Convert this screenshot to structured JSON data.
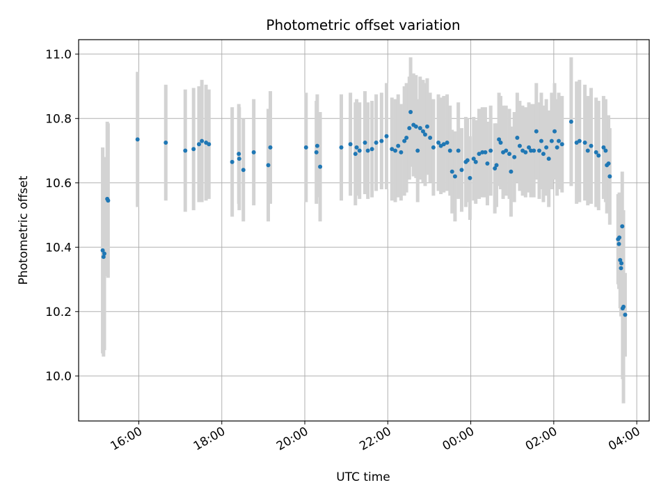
{
  "chart_data": {
    "type": "scatter",
    "title": "Photometric offset variation",
    "xlabel": "UTC time",
    "ylabel": "Photometric offset",
    "x_tick_labels": [
      "16:00",
      "18:00",
      "20:00",
      "22:00",
      "00:00",
      "02:00",
      "04:00"
    ],
    "y_tick_labels": [
      "10.0",
      "10.2",
      "10.4",
      "10.6",
      "10.8",
      "11.0"
    ],
    "x_ticks_hours": [
      16,
      18,
      20,
      22,
      24,
      26,
      28
    ],
    "y_ticks": [
      10.0,
      10.2,
      10.4,
      10.6,
      10.8,
      11.0
    ],
    "xlim_hours": [
      14.55,
      28.3
    ],
    "ylim": [
      9.86,
      11.045
    ],
    "grid": true,
    "marker_color": "#1f77b4",
    "errorbar_color": "#d3d3d3",
    "series": [
      {
        "points": [
          [
            15.13,
            10.39,
            0.32
          ],
          [
            15.15,
            10.37,
            0.31
          ],
          [
            15.17,
            10.38,
            0.3
          ],
          [
            15.24,
            10.55,
            0.24
          ],
          [
            15.26,
            10.545,
            0.24
          ],
          [
            15.97,
            10.735,
            0.21
          ],
          [
            16.65,
            10.725,
            0.18
          ],
          [
            17.12,
            10.7,
            0.19
          ],
          [
            17.32,
            10.705,
            0.19
          ],
          [
            17.45,
            10.72,
            0.18
          ],
          [
            17.52,
            10.73,
            0.19
          ],
          [
            17.62,
            10.725,
            0.18
          ],
          [
            17.69,
            10.72,
            0.17
          ],
          [
            18.25,
            10.665,
            0.17
          ],
          [
            18.41,
            10.69,
            0.155
          ],
          [
            18.42,
            10.675,
            0.16
          ],
          [
            18.52,
            10.64,
            0.16
          ],
          [
            18.77,
            10.695,
            0.165
          ],
          [
            19.12,
            10.655,
            0.175
          ],
          [
            19.17,
            10.71,
            0.175
          ],
          [
            20.03,
            10.71,
            0.17
          ],
          [
            20.28,
            10.695,
            0.16
          ],
          [
            20.3,
            10.715,
            0.16
          ],
          [
            20.37,
            10.65,
            0.17
          ],
          [
            20.88,
            10.71,
            0.165
          ],
          [
            21.1,
            10.72,
            0.16
          ],
          [
            21.22,
            10.69,
            0.16
          ],
          [
            21.25,
            10.71,
            0.15
          ],
          [
            21.32,
            10.7,
            0.15
          ],
          [
            21.45,
            10.725,
            0.16
          ],
          [
            21.52,
            10.7,
            0.15
          ],
          [
            21.62,
            10.705,
            0.15
          ],
          [
            21.72,
            10.725,
            0.15
          ],
          [
            21.85,
            10.73,
            0.15
          ],
          [
            21.97,
            10.745,
            0.165
          ],
          [
            22.1,
            10.705,
            0.16
          ],
          [
            22.18,
            10.7,
            0.16
          ],
          [
            22.25,
            10.715,
            0.16
          ],
          [
            22.32,
            10.695,
            0.15
          ],
          [
            22.4,
            10.73,
            0.17
          ],
          [
            22.45,
            10.74,
            0.17
          ],
          [
            22.52,
            10.77,
            0.16
          ],
          [
            22.55,
            10.82,
            0.17
          ],
          [
            22.62,
            10.78,
            0.16
          ],
          [
            22.68,
            10.775,
            0.16
          ],
          [
            22.72,
            10.7,
            0.16
          ],
          [
            22.78,
            10.77,
            0.16
          ],
          [
            22.85,
            10.76,
            0.16
          ],
          [
            22.9,
            10.75,
            0.16
          ],
          [
            22.95,
            10.775,
            0.15
          ],
          [
            23.02,
            10.74,
            0.14
          ],
          [
            23.1,
            10.71,
            0.15
          ],
          [
            23.22,
            10.725,
            0.15
          ],
          [
            23.28,
            10.715,
            0.15
          ],
          [
            23.35,
            10.72,
            0.15
          ],
          [
            23.43,
            10.725,
            0.15
          ],
          [
            23.5,
            10.7,
            0.14
          ],
          [
            23.55,
            10.635,
            0.13
          ],
          [
            23.62,
            10.62,
            0.14
          ],
          [
            23.7,
            10.7,
            0.15
          ],
          [
            23.78,
            10.64,
            0.13
          ],
          [
            23.88,
            10.665,
            0.14
          ],
          [
            23.92,
            10.67,
            0.13
          ],
          [
            23.98,
            10.615,
            0.13
          ],
          [
            24.07,
            10.675,
            0.13
          ],
          [
            24.12,
            10.665,
            0.13
          ],
          [
            24.2,
            10.69,
            0.14
          ],
          [
            24.28,
            10.695,
            0.14
          ],
          [
            24.35,
            10.695,
            0.14
          ],
          [
            24.4,
            10.66,
            0.13
          ],
          [
            24.48,
            10.7,
            0.14
          ],
          [
            24.58,
            10.645,
            0.14
          ],
          [
            24.62,
            10.655,
            0.13
          ],
          [
            24.68,
            10.735,
            0.145
          ],
          [
            24.72,
            10.725,
            0.145
          ],
          [
            24.78,
            10.695,
            0.145
          ],
          [
            24.85,
            10.7,
            0.14
          ],
          [
            24.93,
            10.69,
            0.14
          ],
          [
            24.97,
            10.635,
            0.14
          ],
          [
            25.05,
            10.68,
            0.14
          ],
          [
            25.12,
            10.74,
            0.14
          ],
          [
            25.18,
            10.715,
            0.14
          ],
          [
            25.25,
            10.7,
            0.14
          ],
          [
            25.32,
            10.695,
            0.14
          ],
          [
            25.4,
            10.71,
            0.14
          ],
          [
            25.45,
            10.7,
            0.145
          ],
          [
            25.52,
            10.7,
            0.145
          ],
          [
            25.58,
            10.76,
            0.15
          ],
          [
            25.65,
            10.7,
            0.15
          ],
          [
            25.7,
            10.73,
            0.15
          ],
          [
            25.75,
            10.69,
            0.15
          ],
          [
            25.82,
            10.71,
            0.15
          ],
          [
            25.88,
            10.675,
            0.15
          ],
          [
            25.95,
            10.73,
            0.15
          ],
          [
            26.02,
            10.76,
            0.15
          ],
          [
            26.08,
            10.71,
            0.15
          ],
          [
            26.12,
            10.73,
            0.15
          ],
          [
            26.2,
            10.72,
            0.15
          ],
          [
            26.42,
            10.79,
            0.2
          ],
          [
            26.55,
            10.725,
            0.19
          ],
          [
            26.62,
            10.73,
            0.19
          ],
          [
            26.75,
            10.725,
            0.18
          ],
          [
            26.82,
            10.7,
            0.17
          ],
          [
            26.9,
            10.715,
            0.18
          ],
          [
            27.02,
            10.695,
            0.17
          ],
          [
            27.08,
            10.685,
            0.17
          ],
          [
            27.2,
            10.71,
            0.16
          ],
          [
            27.25,
            10.7,
            0.16
          ],
          [
            27.28,
            10.655,
            0.15
          ],
          [
            27.32,
            10.66,
            0.15
          ],
          [
            27.35,
            10.62,
            0.15
          ],
          [
            27.55,
            10.425,
            0.14
          ],
          [
            27.57,
            10.41,
            0.14
          ],
          [
            27.58,
            10.43,
            0.14
          ],
          [
            27.6,
            10.36,
            0.15
          ],
          [
            27.62,
            10.335,
            0.15
          ],
          [
            27.63,
            10.35,
            0.16
          ],
          [
            27.65,
            10.465,
            0.17
          ],
          [
            27.66,
            10.21,
            0.22
          ],
          [
            27.68,
            10.215,
            0.3
          ],
          [
            27.72,
            10.19,
            0.13
          ]
        ]
      }
    ]
  }
}
